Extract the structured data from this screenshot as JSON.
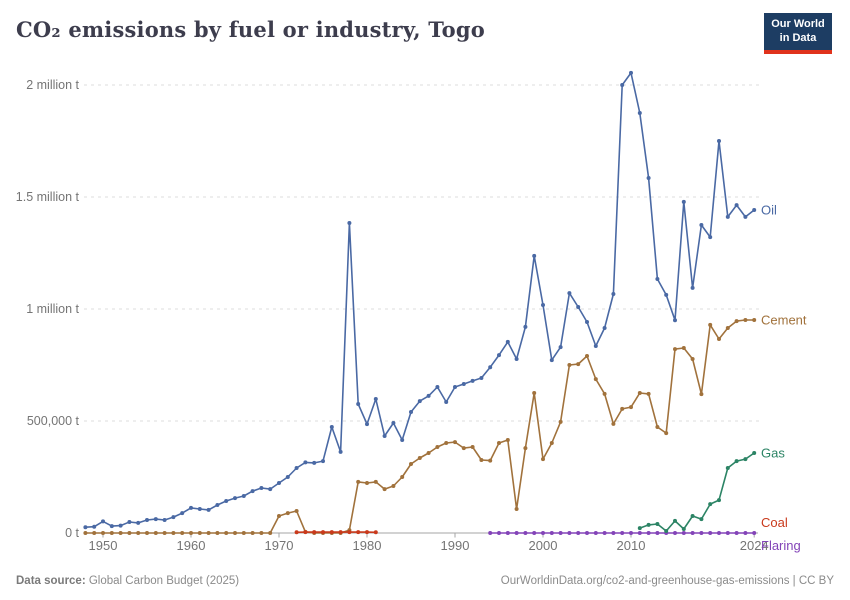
{
  "header": {
    "title": "CO₂ emissions by fuel or industry, Togo",
    "logo_line1": "Our World",
    "logo_line2": "in Data",
    "logo_bg": "#1d3d63",
    "logo_accent": "#e0321c"
  },
  "footer": {
    "source_label": "Data source:",
    "source_value": " Global Carbon Budget (2025)",
    "link": "OurWorldinData.org/co2-and-greenhouse-gas-emissions | CC BY"
  },
  "chart_data": {
    "type": "line",
    "title": "CO₂ emissions by fuel or industry, Togo",
    "unit": "tonnes",
    "grid": "dashed horizontal gridlines",
    "legend_position": "labels at right end of each line",
    "x_range": [
      1948,
      2024
    ],
    "ylim": [
      0,
      2054000
    ],
    "x_ticks": [
      1950,
      1960,
      1970,
      1980,
      1990,
      2000,
      2010,
      2024
    ],
    "y_ticks": [
      {
        "value": 0,
        "label": "0 t"
      },
      {
        "value": 500000,
        "label": "500,000 t"
      },
      {
        "value": 1000000,
        "label": "1 million t"
      },
      {
        "value": 1500000,
        "label": "1.5 million t"
      },
      {
        "value": 2000000,
        "label": "2 million t"
      }
    ],
    "series": [
      {
        "name": "Cement",
        "color": "#A1723C",
        "start_year": 1948,
        "values": [
          0,
          0,
          0,
          0,
          0,
          0,
          0,
          0,
          0,
          0,
          0,
          0,
          0,
          0,
          0,
          0,
          0,
          0,
          0,
          0,
          0,
          0,
          76000,
          89000,
          98000,
          5000,
          0,
          0,
          0,
          0,
          13000,
          228000,
          223000,
          228000,
          196000,
          210000,
          250000,
          308000,
          335000,
          357000,
          384000,
          402000,
          406000,
          379000,
          384000,
          326000,
          323000,
          402000,
          415000,
          107000,
          379000,
          625000,
          330000,
          402000,
          496000,
          750000,
          754000,
          790000,
          687000,
          621000,
          487000,
          554000,
          562000,
          625000,
          621000,
          473000,
          446000,
          821000,
          826000,
          777000,
          620000,
          929000,
          866000,
          915000,
          946000,
          951000,
          951000
        ]
      },
      {
        "name": "Coal",
        "color": "#C93A1C",
        "start_year": 1972,
        "values": [
          3000,
          4000,
          4000,
          4000,
          4000,
          4000,
          4000,
          4000,
          4000,
          3000
        ]
      },
      {
        "name": "Flaring",
        "color": "#8344B8",
        "start_year": 1994,
        "values": [
          0,
          0,
          0,
          0,
          0,
          0,
          0,
          0,
          0,
          0,
          0,
          0,
          0,
          0,
          0,
          0,
          0,
          0,
          0,
          0,
          0,
          0,
          0,
          0,
          0,
          0,
          0,
          0,
          0,
          0,
          0
        ]
      },
      {
        "name": "Gas",
        "color": "#2C8465",
        "start_year": 2011,
        "values": [
          22000,
          36000,
          40000,
          9000,
          54000,
          18000,
          76000,
          62000,
          129000,
          147000,
          290000,
          321000,
          330000,
          357000
        ]
      },
      {
        "name": "Oil",
        "color": "#4A69A4",
        "start_year": 1948,
        "values": [
          26000,
          28000,
          52000,
          31000,
          33000,
          49000,
          45000,
          58000,
          62000,
          58000,
          71000,
          89000,
          112000,
          107000,
          103000,
          125000,
          143000,
          156000,
          165000,
          187000,
          201000,
          196000,
          223000,
          250000,
          290000,
          315000,
          313000,
          321000,
          473000,
          362000,
          1384000,
          576000,
          486000,
          598000,
          433000,
          491000,
          415000,
          540000,
          589000,
          612000,
          652000,
          585000,
          652000,
          665000,
          679000,
          692000,
          740000,
          794000,
          853000,
          777000,
          920000,
          1237000,
          1018000,
          772000,
          830000,
          1071000,
          1009000,
          942000,
          835000,
          915000,
          1067000,
          2000000,
          2054000,
          1875000,
          1585000,
          1134000,
          1063000,
          950000,
          1478000,
          1094000,
          1375000,
          1321000,
          1750000,
          1411000,
          1464000,
          1411000,
          1442000
        ]
      }
    ]
  }
}
